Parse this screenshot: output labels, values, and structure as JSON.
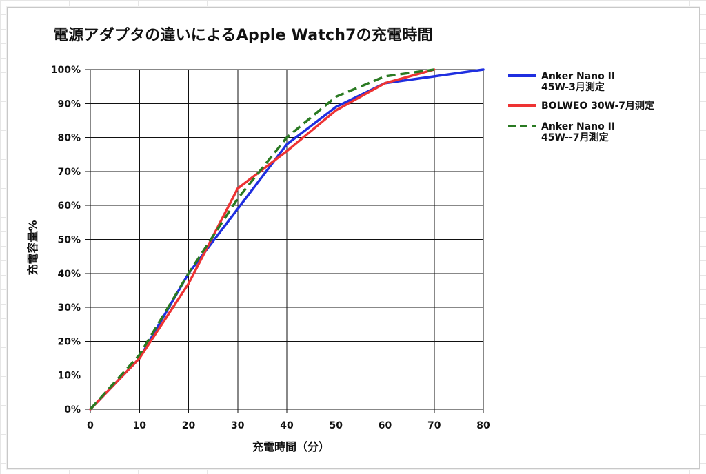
{
  "chart_data": {
    "type": "line",
    "title": "電源アダプタの違いによるApple Watch7の充電時間",
    "xlabel": "充電時間（分）",
    "ylabel": "充電容量%",
    "xlim": [
      0,
      80
    ],
    "ylim": [
      0,
      100
    ],
    "x_ticks": [
      0,
      10,
      20,
      30,
      40,
      50,
      60,
      70,
      80
    ],
    "y_ticks": [
      0,
      10,
      20,
      30,
      40,
      50,
      60,
      70,
      80,
      90,
      100
    ],
    "y_tick_labels": [
      "0%",
      "10%",
      "20%",
      "30%",
      "40%",
      "50%",
      "60%",
      "70%",
      "80%",
      "90%",
      "100%"
    ],
    "grid": true,
    "legend_position": "right",
    "series": [
      {
        "name": "Anker Nano II 45W-3月測定",
        "legend_lines": [
          "Anker Nano II",
          "45W-3月測定"
        ],
        "color": "#1f2fe0",
        "dash": "solid",
        "x": [
          0,
          10,
          20,
          30,
          40,
          50,
          60,
          70,
          80
        ],
        "y": [
          0,
          15,
          40,
          59,
          78,
          89,
          96,
          98,
          100
        ]
      },
      {
        "name": "BOLWEO 30W-7月測定",
        "legend_lines": [
          "BOLWEO 30W-7月測定"
        ],
        "color": "#ee3333",
        "dash": "solid",
        "x": [
          0,
          10,
          20,
          30,
          40,
          50,
          60,
          70
        ],
        "y": [
          0,
          15,
          37,
          65,
          76,
          88,
          96,
          100
        ]
      },
      {
        "name": "Anker Nano II 45W--7月測定",
        "legend_lines": [
          "Anker Nano II",
          "45W--7月測定"
        ],
        "color": "#2a7a22",
        "dash": "dashed",
        "x": [
          0,
          10,
          20,
          30,
          40,
          50,
          60,
          70
        ],
        "y": [
          0,
          16,
          40,
          62,
          80,
          92,
          98,
          100
        ]
      }
    ]
  }
}
